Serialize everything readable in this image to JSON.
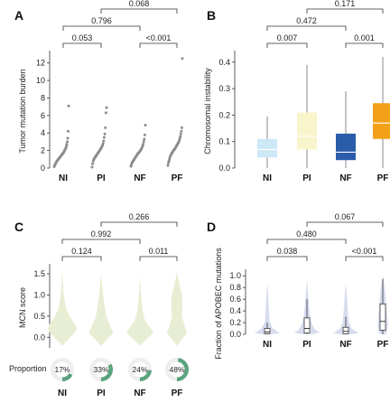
{
  "colors": {
    "axis": "#333333",
    "dot": "#8c8c8c",
    "violin_c": "#e8eed4",
    "violin_d": "#d7dcee",
    "ring_fill": "#5aa37d",
    "ring_bg": "#eeeeee",
    "box_d_stroke": "#222222",
    "box_b": [
      "#cde8f6",
      "#f8f5cc",
      "#2a5caa",
      "#f4a11a"
    ],
    "median_b": [
      "#ffffff",
      "#ffffff",
      "#ffffff",
      "#ffffff"
    ]
  },
  "chart_data": [
    {
      "panel": "A",
      "type": "scatter",
      "categories": [
        "NI",
        "PI",
        "NF",
        "PF"
      ],
      "ylabel": "Tumor mutation burden",
      "ylim": [
        0,
        13
      ],
      "yticks": [
        0,
        2,
        4,
        6,
        8,
        10,
        12
      ],
      "series": [
        {
          "category": "NI",
          "values": [
            0.15,
            0.3,
            0.4,
            0.5,
            0.6,
            0.7,
            0.8,
            0.85,
            0.9,
            1.0,
            1.05,
            1.1,
            1.2,
            1.25,
            1.3,
            1.4,
            1.45,
            1.5,
            1.6,
            1.65,
            1.7,
            1.8,
            1.9,
            2.0,
            2.1,
            2.2,
            2.3,
            2.5,
            2.7,
            3.0,
            3.4,
            4.2,
            7.1
          ]
        },
        {
          "category": "PI",
          "values": [
            0.1,
            0.5,
            0.8,
            1.0,
            1.1,
            1.2,
            1.3,
            1.4,
            1.5,
            1.6,
            1.7,
            1.8,
            1.9,
            2.0,
            2.1,
            2.2,
            2.3,
            2.45,
            2.6,
            2.8,
            3.1,
            3.5,
            3.9,
            4.6,
            6.3,
            6.9
          ]
        },
        {
          "category": "NF",
          "values": [
            0.2,
            0.4,
            0.6,
            0.7,
            0.8,
            0.9,
            1.0,
            1.1,
            1.2,
            1.3,
            1.4,
            1.5,
            1.6,
            1.7,
            1.75,
            1.8,
            1.9,
            2.0,
            2.1,
            2.2,
            2.35,
            2.5,
            2.7,
            3.0,
            3.3,
            3.8,
            4.9
          ]
        },
        {
          "category": "PF",
          "values": [
            0.3,
            0.6,
            0.8,
            1.0,
            1.2,
            1.4,
            1.5,
            1.6,
            1.7,
            1.8,
            1.9,
            2.0,
            2.05,
            2.1,
            2.2,
            2.3,
            2.4,
            2.5,
            2.6,
            2.7,
            2.8,
            2.9,
            3.0,
            3.2,
            3.4,
            3.6,
            3.9,
            4.2,
            4.6,
            12.5
          ]
        }
      ],
      "comparisons": [
        {
          "from": 0,
          "to": 1,
          "label": "0.053",
          "level": 0
        },
        {
          "from": 2,
          "to": 3,
          "label": "<0.001",
          "level": 0
        },
        {
          "from": 0,
          "to": 2,
          "label": "0.796",
          "level": 1
        },
        {
          "from": 1,
          "to": 3,
          "label": "0.068",
          "level": 2
        }
      ]
    },
    {
      "panel": "B",
      "type": "box",
      "categories": [
        "NI",
        "PI",
        "NF",
        "PF"
      ],
      "ylabel": "Chromosomal instability",
      "ylim": [
        0,
        0.43
      ],
      "yticks": [
        0.0,
        0.1,
        0.2,
        0.3,
        0.4
      ],
      "boxes": [
        {
          "category": "NI",
          "min": 0.0,
          "q1": 0.04,
          "median": 0.07,
          "q3": 0.11,
          "max": 0.195
        },
        {
          "category": "PI",
          "min": 0.0,
          "q1": 0.07,
          "median": 0.12,
          "q3": 0.21,
          "max": 0.39
        },
        {
          "category": "NF",
          "min": 0.0,
          "q1": 0.03,
          "median": 0.06,
          "q3": 0.13,
          "max": 0.29
        },
        {
          "category": "PF",
          "min": 0.0,
          "q1": 0.11,
          "median": 0.17,
          "q3": 0.245,
          "max": 0.42
        }
      ],
      "comparisons": [
        {
          "from": 0,
          "to": 1,
          "label": "0.007",
          "level": 0
        },
        {
          "from": 2,
          "to": 3,
          "label": "0.001",
          "level": 0
        },
        {
          "from": 0,
          "to": 2,
          "label": "0.472",
          "level": 1
        },
        {
          "from": 1,
          "to": 3,
          "label": "0.171",
          "level": 2
        }
      ]
    },
    {
      "panel": "C",
      "type": "violin",
      "categories": [
        "NI",
        "PI",
        "NF",
        "PF"
      ],
      "ylabel": "MCN score",
      "ylim": [
        -0.25,
        1.65
      ],
      "yticks": [
        0.0,
        0.5,
        1.0,
        1.5
      ],
      "violins": [
        {
          "category": "NI",
          "ys": [
            -0.2,
            0.0,
            0.1,
            0.2,
            0.3,
            0.5,
            0.7,
            1.0,
            1.3,
            1.55
          ],
          "half_widths": [
            0,
            0.55,
            0.85,
            1.0,
            0.9,
            0.5,
            0.25,
            0.1,
            0.05,
            0
          ]
        },
        {
          "category": "PI",
          "ys": [
            -0.2,
            0.0,
            0.1,
            0.3,
            0.5,
            0.8,
            1.1,
            1.3,
            1.55
          ],
          "half_widths": [
            0,
            0.55,
            0.85,
            0.6,
            0.35,
            0.22,
            0.12,
            0.05,
            0
          ]
        },
        {
          "category": "NF",
          "ys": [
            -0.2,
            0.0,
            0.1,
            0.2,
            0.4,
            0.6,
            0.9,
            1.2,
            1.45
          ],
          "half_widths": [
            0,
            0.6,
            0.95,
            0.75,
            0.35,
            0.2,
            0.1,
            0.04,
            0
          ]
        },
        {
          "category": "PF",
          "ys": [
            -0.2,
            0.0,
            0.1,
            0.3,
            0.5,
            0.8,
            1.0,
            1.2,
            1.4,
            1.55
          ],
          "half_widths": [
            0,
            0.45,
            0.7,
            0.5,
            0.35,
            0.4,
            0.35,
            0.2,
            0.08,
            0
          ]
        }
      ],
      "comparisons": [
        {
          "from": 0,
          "to": 1,
          "label": "0.124",
          "level": 0
        },
        {
          "from": 2,
          "to": 3,
          "label": "0.011",
          "level": 0
        },
        {
          "from": 0,
          "to": 2,
          "label": "0.992",
          "level": 1
        },
        {
          "from": 1,
          "to": 3,
          "label": "0.266",
          "level": 2
        }
      ],
      "proportion": {
        "label": "Proportion",
        "values": [
          {
            "category": "NI",
            "pct": 17
          },
          {
            "category": "PI",
            "pct": 33
          },
          {
            "category": "NF",
            "pct": 24
          },
          {
            "category": "PF",
            "pct": 48
          }
        ]
      }
    },
    {
      "panel": "D",
      "type": "violin-box",
      "categories": [
        "NI",
        "PI",
        "NF",
        "PF"
      ],
      "ylabel": "Fraction of APOBEC mutations",
      "ylim": [
        0,
        1.05
      ],
      "yticks": [
        0.0,
        0.2,
        0.4,
        0.6,
        0.8,
        1.0
      ],
      "violins": [
        {
          "category": "NI",
          "ys": [
            0,
            0.02,
            0.05,
            0.1,
            0.2,
            0.3,
            0.45,
            0.6,
            0.75,
            0.85
          ],
          "half_widths": [
            0.35,
            1.0,
            0.8,
            0.45,
            0.2,
            0.15,
            0.12,
            0.08,
            0.05,
            0
          ]
        },
        {
          "category": "PI",
          "ys": [
            0,
            0.03,
            0.08,
            0.15,
            0.25,
            0.35,
            0.5,
            0.65,
            0.8,
            0.95
          ],
          "half_widths": [
            0.4,
            1.0,
            0.65,
            0.45,
            0.3,
            0.22,
            0.15,
            0.1,
            0.05,
            0
          ]
        },
        {
          "category": "NF",
          "ys": [
            0,
            0.02,
            0.05,
            0.1,
            0.2,
            0.3,
            0.45,
            0.6,
            0.75,
            0.85
          ],
          "half_widths": [
            0.35,
            1.0,
            0.8,
            0.45,
            0.25,
            0.2,
            0.15,
            0.1,
            0.05,
            0
          ]
        },
        {
          "category": "PF",
          "ys": [
            0,
            0.05,
            0.15,
            0.25,
            0.4,
            0.55,
            0.7,
            0.85,
            1.0
          ],
          "half_widths": [
            0.2,
            0.35,
            0.4,
            0.38,
            0.32,
            0.26,
            0.2,
            0.12,
            0
          ]
        }
      ],
      "boxes": [
        {
          "category": "NI",
          "min": 0.0,
          "q1": 0.01,
          "median": 0.04,
          "q3": 0.1,
          "max": 0.2
        },
        {
          "category": "PI",
          "min": 0.0,
          "q1": 0.02,
          "median": 0.1,
          "q3": 0.28,
          "max": 0.6
        },
        {
          "category": "NF",
          "min": 0.0,
          "q1": 0.01,
          "median": 0.05,
          "q3": 0.12,
          "max": 0.3
        },
        {
          "category": "PF",
          "min": 0.0,
          "q1": 0.07,
          "median": 0.22,
          "q3": 0.52,
          "max": 0.95
        }
      ],
      "comparisons": [
        {
          "from": 0,
          "to": 1,
          "label": "0.038",
          "level": 0
        },
        {
          "from": 2,
          "to": 3,
          "label": "<0.001",
          "level": 0
        },
        {
          "from": 0,
          "to": 2,
          "label": "0.480",
          "level": 1
        },
        {
          "from": 1,
          "to": 3,
          "label": "0.067",
          "level": 2
        }
      ]
    }
  ]
}
